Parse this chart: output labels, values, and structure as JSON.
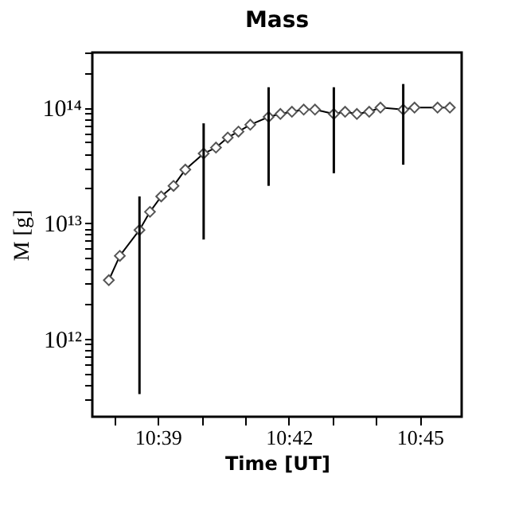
{
  "chart_data": {
    "type": "line",
    "title": "Mass",
    "xlabel": "Time [UT]",
    "ylabel": "M [g]",
    "x": [
      10.6313,
      10.6355,
      10.643,
      10.647,
      10.6513,
      10.656,
      10.6605,
      10.6675,
      10.6722,
      10.6767,
      10.6808,
      10.6853,
      10.6923,
      10.6968,
      10.7012,
      10.7057,
      10.71,
      10.7172,
      10.7215,
      10.726,
      10.7307,
      10.735,
      10.7437,
      10.748,
      10.7568,
      10.7615
    ],
    "series": [
      {
        "color": "#000000",
        "values": [
          3200000000000.0,
          5200000000000.0,
          8700000000000.0,
          12500000000000.0,
          17000000000000.0,
          21000000000000.0,
          29000000000000.0,
          40000000000000.0,
          45000000000000.0,
          55000000000000.0,
          62000000000000.0,
          71000000000000.0,
          83000000000000.0,
          88000000000000.0,
          92000000000000.0,
          96000000000000.0,
          96000000000000.0,
          88000000000000.0,
          92000000000000.0,
          88000000000000.0,
          92000000000000.0,
          100000000000000.0,
          96000000000000.0,
          100000000000000.0,
          100000000000000.0,
          100000000000000.0
        ],
        "errors": [
          null,
          null,
          [
            330000000000.0,
            17000000000000.0
          ],
          null,
          null,
          null,
          null,
          [
            7200000000000.0,
            73000000000000.0
          ],
          null,
          null,
          null,
          null,
          [
            21000000000000.0,
            150000000000000.0
          ],
          null,
          null,
          null,
          null,
          [
            27000000000000.0,
            150000000000000.0
          ],
          null,
          null,
          null,
          null,
          [
            32000000000000.0,
            160000000000000.0
          ],
          null,
          null,
          null
        ]
      }
    ],
    "log": "y",
    "marker": "diamond",
    "line_style": "solid",
    "grid": false,
    "xlim": [
      10.625,
      10.766
    ],
    "xticks": [
      {
        "value": 10.6333,
        "label": null
      },
      {
        "value": 10.65,
        "label": "10:39"
      },
      {
        "value": 10.6667,
        "label": null
      },
      {
        "value": 10.6833,
        "label": null
      },
      {
        "value": 10.7,
        "label": "10:42"
      },
      {
        "value": 10.7167,
        "label": null
      },
      {
        "value": 10.7333,
        "label": null
      },
      {
        "value": 10.75,
        "label": "10:45"
      }
    ],
    "ylim": [
      210000000000.0,
      300000000000000.0
    ],
    "yticks": [
      {
        "value": 300000000000.0,
        "label": null
      },
      {
        "value": 400000000000.0,
        "label": null
      },
      {
        "value": 500000000000.0,
        "label": null
      },
      {
        "value": 600000000000.0,
        "label": null
      },
      {
        "value": 700000000000.0,
        "label": null
      },
      {
        "value": 800000000000.0,
        "label": null
      },
      {
        "value": 900000000000.0,
        "label": null
      },
      {
        "value": 1000000000000.0,
        "label": "10¹²"
      },
      {
        "value": 2000000000000.0,
        "label": null
      },
      {
        "value": 3000000000000.0,
        "label": null
      },
      {
        "value": 4000000000000.0,
        "label": null
      },
      {
        "value": 5000000000000.0,
        "label": null
      },
      {
        "value": 6000000000000.0,
        "label": null
      },
      {
        "value": 7000000000000.0,
        "label": null
      },
      {
        "value": 8000000000000.0,
        "label": null
      },
      {
        "value": 9000000000000.0,
        "label": null
      },
      {
        "value": 10000000000000.0,
        "label": "10¹³"
      },
      {
        "value": 20000000000000.0,
        "label": null
      },
      {
        "value": 30000000000000.0,
        "label": null
      },
      {
        "value": 40000000000000.0,
        "label": null
      },
      {
        "value": 50000000000000.0,
        "label": null
      },
      {
        "value": 60000000000000.0,
        "label": null
      },
      {
        "value": 70000000000000.0,
        "label": null
      },
      {
        "value": 80000000000000.0,
        "label": null
      },
      {
        "value": 90000000000000.0,
        "label": null
      },
      {
        "value": 100000000000000.0,
        "label": "10¹⁴"
      },
      {
        "value": 200000000000000.0,
        "label": null
      },
      {
        "value": 300000000000000.0,
        "label": null
      }
    ]
  }
}
